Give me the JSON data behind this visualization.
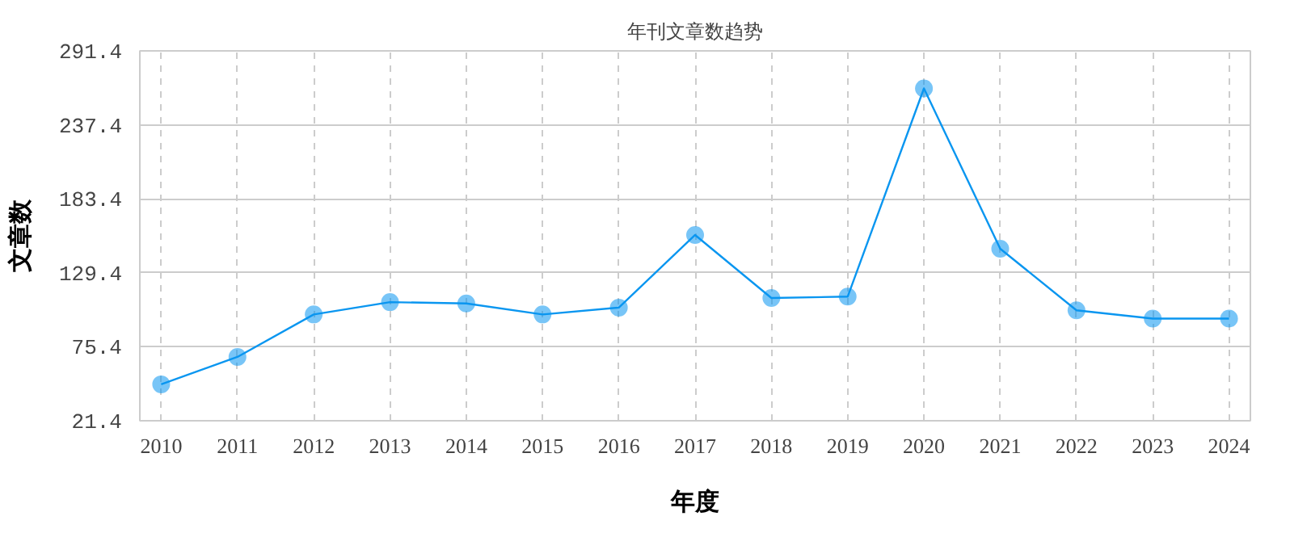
{
  "chart_data": {
    "type": "line",
    "title": "年刊文章数趋势",
    "xlabel": "年度",
    "ylabel": "文章数",
    "categories": [
      "2010",
      "2011",
      "2012",
      "2013",
      "2014",
      "2015",
      "2016",
      "2017",
      "2018",
      "2019",
      "2020",
      "2021",
      "2022",
      "2023",
      "2024"
    ],
    "series": [
      {
        "color": "#0a96f0",
        "values": [
          48,
          68,
          99,
          108,
          107,
          99,
          104,
          157,
          111,
          112,
          264,
          147,
          102,
          96,
          96
        ]
      }
    ],
    "marker": "circle",
    "ylim": [
      21.4,
      291.4
    ],
    "yticks": [
      21.4,
      75.4,
      129.4,
      183.4,
      237.4,
      291.4
    ],
    "grid": true
  }
}
